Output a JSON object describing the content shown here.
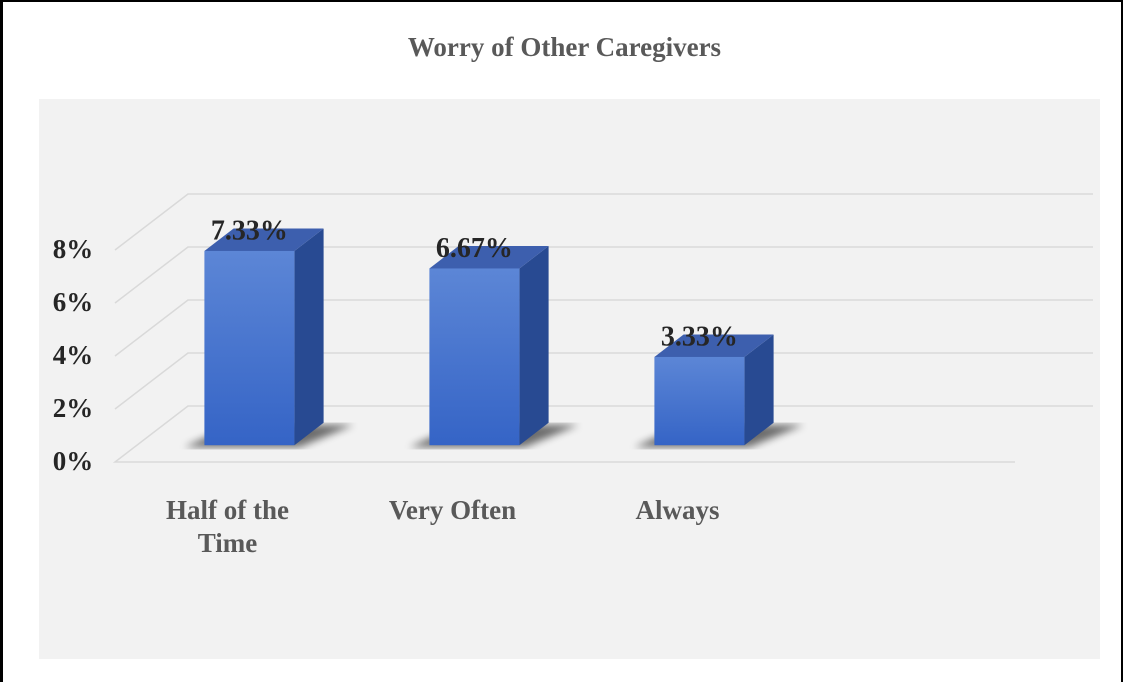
{
  "chart_data": {
    "type": "bar3d",
    "title": "Worry of Other Caregivers",
    "categories": [
      "Half of the Time",
      "Very Often",
      "Always"
    ],
    "values": [
      7.33,
      6.67,
      3.33
    ],
    "value_labels": [
      "7.33%",
      "6.67%",
      "3.33%"
    ],
    "color": "#4a76d0",
    "ylim": [
      0,
      8
    ],
    "yticks": [
      {
        "value": 0,
        "label": "0%"
      },
      {
        "value": 2,
        "label": "2%"
      },
      {
        "value": 4,
        "label": "4%"
      },
      {
        "value": 6,
        "label": "6%"
      },
      {
        "value": 8,
        "label": "8%"
      }
    ],
    "grid": true
  }
}
